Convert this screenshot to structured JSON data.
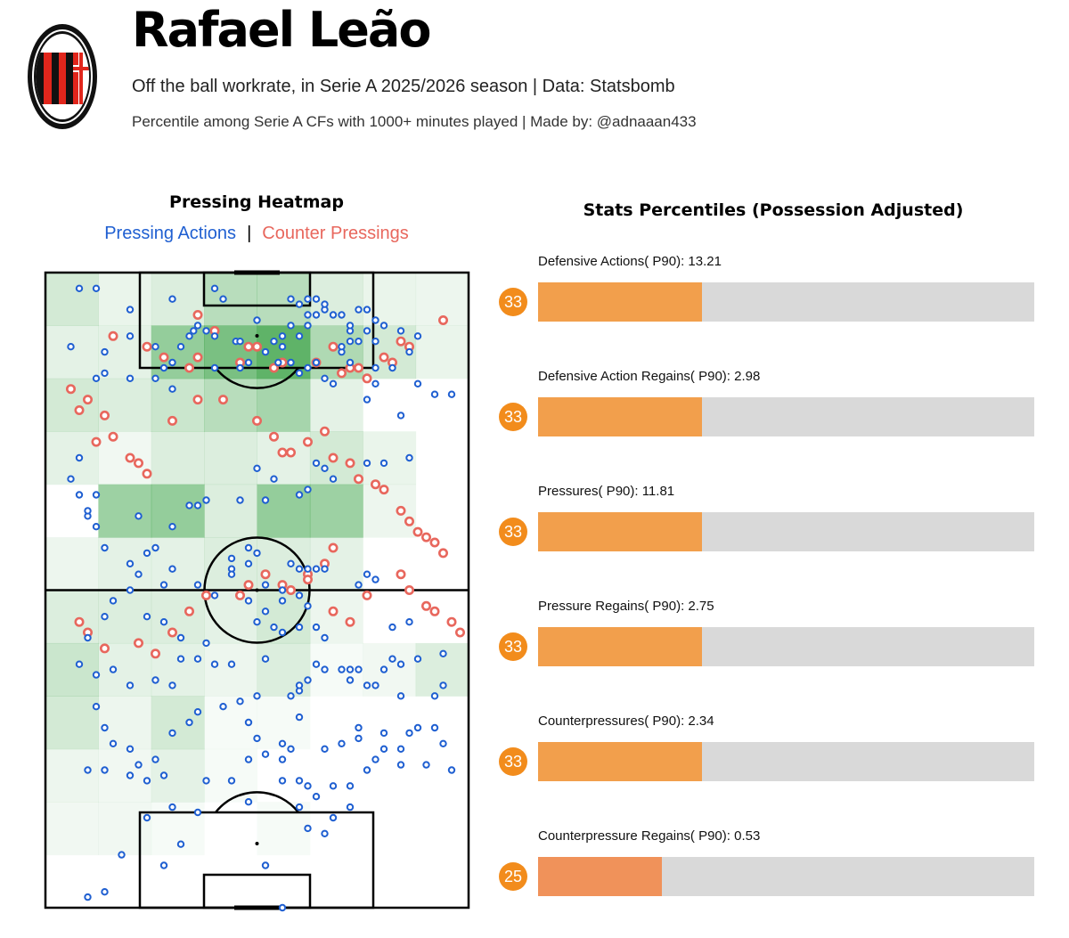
{
  "header": {
    "player_name": "Rafael Leão",
    "subtitle": "Off the ball workrate, in Serie A 2025/2026 season | Data: Statsbomb",
    "subtitle2": "Percentile among Serie A CFs with 1000+ minutes played | Made by: @adnaaan433",
    "badge_top_text": "ACM",
    "badge_year": "1899"
  },
  "colors": {
    "pressing": "#1f5fd1",
    "counter": "#e8675d",
    "bar_fill": "#f29f4c",
    "bar_fill_low": "#f0925a",
    "bar_bg": "#d9d9d9",
    "pct_circle": "#f28c1c",
    "heat": "#2e9c3a",
    "badge_red": "#e1261c"
  },
  "heatmap": {
    "title": "Pressing Heatmap",
    "legend_pressing": "Pressing Actions",
    "legend_separator": "|",
    "legend_counter": "Counter Pressings"
  },
  "stats": {
    "title": "Stats Percentiles (Possession Adjusted)",
    "items": [
      {
        "label": "Defensive Actions( P90): 13.21",
        "percentile": 33
      },
      {
        "label": "Defensive Action Regains( P90): 2.98",
        "percentile": 33
      },
      {
        "label": "Pressures( P90): 11.81",
        "percentile": 33
      },
      {
        "label": "Pressure Regains( P90): 2.75",
        "percentile": 33
      },
      {
        "label": "Counterpressures( P90): 2.34",
        "percentile": 33
      },
      {
        "label": "Counterpressure Regains( P90): 0.53",
        "percentile": 25
      }
    ]
  },
  "chart_data": [
    {
      "type": "heatmap",
      "title": "Pressing Heatmap",
      "series_names": [
        "Pressing Actions",
        "Counter Pressings"
      ],
      "grid_rows": 12,
      "grid_cols": 8,
      "intensity": [
        [
          0.25,
          0.12,
          0.2,
          0.4,
          0.4,
          0.2,
          0.12,
          0.1
        ],
        [
          0.15,
          0.15,
          0.6,
          0.75,
          0.9,
          0.45,
          0.25,
          0.12
        ],
        [
          0.25,
          0.2,
          0.3,
          0.4,
          0.5,
          0.15,
          0.0,
          0.0
        ],
        [
          0.15,
          0.08,
          0.2,
          0.2,
          0.15,
          0.25,
          0.12,
          0.0
        ],
        [
          0.0,
          0.55,
          0.6,
          0.2,
          0.6,
          0.55,
          0.1,
          0.0
        ],
        [
          0.1,
          0.15,
          0.15,
          0.2,
          0.2,
          0.15,
          0.0,
          0.0
        ],
        [
          0.2,
          0.2,
          0.2,
          0.15,
          0.25,
          0.1,
          0.0,
          0.0
        ],
        [
          0.3,
          0.15,
          0.15,
          0.1,
          0.2,
          0.05,
          0.08,
          0.2
        ],
        [
          0.25,
          0.1,
          0.25,
          0.05,
          0.05,
          0.0,
          0.0,
          0.0
        ],
        [
          0.1,
          0.08,
          0.15,
          0.05,
          0.0,
          0.0,
          0.0,
          0.0
        ],
        [
          0.08,
          0.08,
          0.05,
          0.0,
          0.05,
          0.0,
          0.0,
          0.0
        ],
        [
          0.0,
          0.0,
          0.0,
          0.0,
          0.0,
          0.0,
          0.0,
          0.0
        ]
      ],
      "pressing_points": [
        [
          8,
          3
        ],
        [
          12,
          3
        ],
        [
          20,
          7
        ],
        [
          30,
          22
        ],
        [
          40,
          18
        ],
        [
          46,
          18
        ],
        [
          48,
          17
        ],
        [
          6,
          14
        ],
        [
          14,
          15
        ],
        [
          12,
          20
        ],
        [
          14,
          19
        ],
        [
          20,
          20
        ],
        [
          26,
          20
        ],
        [
          28,
          18
        ],
        [
          30,
          17
        ],
        [
          20,
          12
        ],
        [
          26,
          14
        ],
        [
          32,
          14
        ],
        [
          40,
          12
        ],
        [
          38,
          11
        ],
        [
          36,
          10
        ],
        [
          30,
          5
        ],
        [
          34,
          12
        ],
        [
          35,
          11
        ],
        [
          40,
          3
        ],
        [
          42,
          5
        ],
        [
          45,
          13
        ],
        [
          52,
          15
        ],
        [
          55,
          17
        ],
        [
          62,
          18
        ],
        [
          60,
          19
        ],
        [
          64,
          17
        ],
        [
          66,
          20
        ],
        [
          70,
          15
        ],
        [
          72,
          17
        ],
        [
          68,
          21
        ],
        [
          76,
          24
        ],
        [
          78,
          18
        ],
        [
          82,
          18
        ],
        [
          86,
          15
        ],
        [
          88,
          12
        ],
        [
          84,
          11
        ],
        [
          80,
          10
        ],
        [
          78,
          9
        ],
        [
          76,
          7
        ],
        [
          74,
          7
        ],
        [
          70,
          8
        ],
        [
          68,
          8
        ],
        [
          72,
          11
        ],
        [
          72,
          10
        ],
        [
          72,
          13
        ],
        [
          70,
          14
        ],
        [
          62,
          10
        ],
        [
          54,
          13
        ],
        [
          56,
          12
        ],
        [
          58,
          10
        ],
        [
          64,
          8
        ],
        [
          66,
          7
        ],
        [
          62,
          8
        ],
        [
          50,
          9
        ],
        [
          46,
          13
        ],
        [
          60,
          6
        ],
        [
          58,
          5
        ],
        [
          62,
          5
        ],
        [
          64,
          5
        ],
        [
          66,
          6
        ],
        [
          58,
          17
        ],
        [
          56,
          14
        ],
        [
          60,
          12
        ],
        [
          74,
          13
        ],
        [
          76,
          11
        ],
        [
          78,
          13
        ],
        [
          78,
          21
        ],
        [
          84,
          27
        ],
        [
          88,
          21
        ],
        [
          92,
          23
        ],
        [
          96,
          23
        ],
        [
          86,
          35
        ],
        [
          80,
          36
        ],
        [
          76,
          36
        ],
        [
          62,
          41
        ],
        [
          60,
          42
        ],
        [
          68,
          39
        ],
        [
          66,
          37
        ],
        [
          64,
          36
        ],
        [
          54,
          39
        ],
        [
          52,
          43
        ],
        [
          50,
          37
        ],
        [
          46,
          43
        ],
        [
          36,
          44
        ],
        [
          38,
          43
        ],
        [
          34,
          44
        ],
        [
          30,
          48
        ],
        [
          22,
          46
        ],
        [
          12,
          42
        ],
        [
          10,
          46
        ],
        [
          8,
          42
        ],
        [
          6,
          39
        ],
        [
          8,
          35
        ],
        [
          10,
          45
        ],
        [
          12,
          48
        ],
        [
          14,
          52
        ],
        [
          20,
          55
        ],
        [
          24,
          53
        ],
        [
          26,
          52
        ],
        [
          22,
          57
        ],
        [
          28,
          59
        ],
        [
          30,
          56
        ],
        [
          36,
          59
        ],
        [
          40,
          61
        ],
        [
          44,
          56
        ],
        [
          44,
          57
        ],
        [
          52,
          59
        ],
        [
          48,
          55
        ],
        [
          48,
          52
        ],
        [
          44,
          54
        ],
        [
          50,
          53
        ],
        [
          58,
          55
        ],
        [
          60,
          56
        ],
        [
          62,
          56
        ],
        [
          64,
          56
        ],
        [
          66,
          56
        ],
        [
          74,
          59
        ],
        [
          76,
          57
        ],
        [
          78,
          58
        ],
        [
          86,
          66
        ],
        [
          82,
          73
        ],
        [
          76,
          78
        ],
        [
          74,
          86
        ],
        [
          86,
          87
        ],
        [
          84,
          80
        ],
        [
          82,
          67
        ],
        [
          72,
          75
        ],
        [
          62,
          77
        ],
        [
          60,
          79
        ],
        [
          52,
          73
        ],
        [
          50,
          66
        ],
        [
          48,
          62
        ],
        [
          38,
          70
        ],
        [
          32,
          69
        ],
        [
          28,
          66
        ],
        [
          24,
          65
        ],
        [
          20,
          60
        ],
        [
          16,
          62
        ],
        [
          14,
          65
        ],
        [
          10,
          69
        ],
        [
          8,
          74
        ],
        [
          12,
          76
        ],
        [
          16,
          75
        ],
        [
          20,
          78
        ],
        [
          26,
          77
        ],
        [
          30,
          78
        ],
        [
          32,
          73
        ],
        [
          36,
          73
        ],
        [
          40,
          74
        ],
        [
          44,
          74
        ],
        [
          50,
          80
        ],
        [
          58,
          80
        ],
        [
          56,
          68
        ],
        [
          56,
          60
        ],
        [
          62,
          63
        ],
        [
          60,
          61
        ],
        [
          56,
          62
        ],
        [
          52,
          64
        ],
        [
          54,
          67
        ],
        [
          60,
          67
        ],
        [
          64,
          67
        ],
        [
          66,
          69
        ],
        [
          64,
          74
        ],
        [
          66,
          75
        ],
        [
          60,
          78
        ],
        [
          70,
          75
        ],
        [
          72,
          77
        ],
        [
          74,
          75
        ],
        [
          78,
          78
        ],
        [
          80,
          75
        ],
        [
          84,
          74
        ],
        [
          88,
          73
        ],
        [
          94,
          72
        ],
        [
          94,
          78
        ],
        [
          92,
          80
        ],
        [
          12,
          82
        ],
        [
          14,
          86
        ],
        [
          16,
          89
        ],
        [
          20,
          90
        ],
        [
          22,
          93
        ],
        [
          26,
          92
        ],
        [
          30,
          87
        ],
        [
          34,
          85
        ],
        [
          36,
          83
        ],
        [
          42,
          82
        ],
        [
          46,
          81
        ],
        [
          48,
          85
        ],
        [
          50,
          88
        ],
        [
          52,
          91
        ],
        [
          48,
          92
        ],
        [
          56,
          89
        ],
        [
          56,
          92
        ],
        [
          58,
          90
        ],
        [
          60,
          84
        ],
        [
          66,
          90
        ],
        [
          70,
          89
        ],
        [
          74,
          88
        ],
        [
          78,
          92
        ],
        [
          80,
          87
        ],
        [
          80,
          90
        ],
        [
          84,
          90
        ],
        [
          88,
          86
        ],
        [
          92,
          86
        ],
        [
          94,
          89
        ],
        [
          10,
          94
        ],
        [
          14,
          94
        ],
        [
          20,
          95
        ],
        [
          28,
          95
        ],
        [
          24,
          96
        ],
        [
          38,
          96
        ],
        [
          44,
          96
        ],
        [
          56,
          96
        ],
        [
          60,
          96
        ],
        [
          62,
          97
        ],
        [
          68,
          97
        ],
        [
          72,
          97
        ],
        [
          76,
          94
        ],
        [
          84,
          93
        ],
        [
          90,
          93
        ],
        [
          96,
          94
        ],
        [
          28,
          112
        ],
        [
          18,
          110
        ],
        [
          32,
          108
        ],
        [
          10,
          118
        ],
        [
          14,
          117
        ],
        [
          52,
          112
        ],
        [
          56,
          120
        ],
        [
          62,
          105
        ],
        [
          68,
          103
        ],
        [
          24,
          103
        ],
        [
          30,
          101
        ],
        [
          36,
          102
        ],
        [
          48,
          100
        ],
        [
          60,
          101
        ],
        [
          66,
          106
        ],
        [
          72,
          101
        ],
        [
          64,
          99
        ]
      ],
      "counter_points": [
        [
          16,
          12
        ],
        [
          24,
          14
        ],
        [
          28,
          16
        ],
        [
          34,
          18
        ],
        [
          36,
          16
        ],
        [
          36,
          8
        ],
        [
          40,
          11
        ],
        [
          46,
          17
        ],
        [
          48,
          14
        ],
        [
          50,
          14
        ],
        [
          54,
          18
        ],
        [
          56,
          17
        ],
        [
          64,
          17
        ],
        [
          68,
          14
        ],
        [
          70,
          19
        ],
        [
          72,
          18
        ],
        [
          74,
          18
        ],
        [
          76,
          20
        ],
        [
          80,
          16
        ],
        [
          82,
          17
        ],
        [
          84,
          13
        ],
        [
          86,
          14
        ],
        [
          94,
          9
        ],
        [
          6,
          22
        ],
        [
          10,
          24
        ],
        [
          14,
          27
        ],
        [
          8,
          26
        ],
        [
          12,
          32
        ],
        [
          16,
          31
        ],
        [
          20,
          35
        ],
        [
          22,
          36
        ],
        [
          24,
          38
        ],
        [
          30,
          28
        ],
        [
          36,
          24
        ],
        [
          42,
          24
        ],
        [
          50,
          28
        ],
        [
          54,
          31
        ],
        [
          56,
          34
        ],
        [
          58,
          34
        ],
        [
          62,
          32
        ],
        [
          66,
          30
        ],
        [
          68,
          35
        ],
        [
          72,
          36
        ],
        [
          74,
          39
        ],
        [
          78,
          40
        ],
        [
          80,
          41
        ],
        [
          84,
          45
        ],
        [
          86,
          47
        ],
        [
          88,
          49
        ],
        [
          90,
          50
        ],
        [
          92,
          51
        ],
        [
          94,
          53
        ],
        [
          58,
          60
        ],
        [
          62,
          57
        ],
        [
          66,
          55
        ],
        [
          68,
          52
        ],
        [
          8,
          66
        ],
        [
          10,
          68
        ],
        [
          14,
          71
        ],
        [
          22,
          70
        ],
        [
          26,
          72
        ],
        [
          30,
          68
        ],
        [
          34,
          64
        ],
        [
          38,
          61
        ],
        [
          46,
          61
        ],
        [
          48,
          59
        ],
        [
          52,
          57
        ],
        [
          56,
          59
        ],
        [
          62,
          58
        ],
        [
          68,
          64
        ],
        [
          72,
          66
        ],
        [
          76,
          61
        ],
        [
          84,
          57
        ],
        [
          86,
          60
        ],
        [
          90,
          63
        ],
        [
          92,
          64
        ],
        [
          96,
          66
        ],
        [
          98,
          68
        ]
      ]
    },
    {
      "type": "bar",
      "title": "Stats Percentiles (Possession Adjusted)",
      "categories": [
        "Defensive Actions( P90): 13.21",
        "Defensive Action Regains( P90): 2.98",
        "Pressures( P90): 11.81",
        "Pressure Regains( P90): 2.75",
        "Counterpressures( P90): 2.34",
        "Counterpressure Regains( P90): 0.53"
      ],
      "values": [
        33,
        33,
        33,
        33,
        33,
        25
      ],
      "ylim": [
        0,
        100
      ]
    }
  ]
}
